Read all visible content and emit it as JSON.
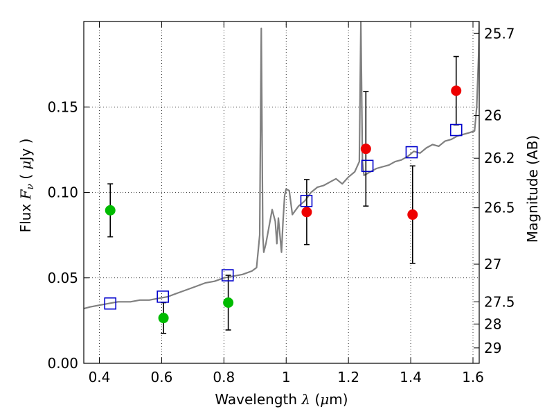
{
  "chart_data": {
    "type": "scatter",
    "xlabel_prefix": "Wavelength",
    "xlabel_math": "λ",
    "xlabel_unit_open": "(",
    "xlabel_unit_mu": "μ",
    "xlabel_unit_rest": "m)",
    "ylabel_prefix": "Flux",
    "ylabel_math": "F",
    "ylabel_sub": "ν",
    "ylabel_unit_open": "(",
    "ylabel_unit_mu": "μ",
    "ylabel_unit_rest": "Jy )",
    "y2label": "Magnitude (AB)",
    "xlim": [
      0.35,
      1.62
    ],
    "ylim": [
      0.0,
      0.2
    ],
    "grid": true,
    "x_ticks": [
      {
        "value": 0.4,
        "label": "0.4"
      },
      {
        "value": 0.6,
        "label": "0.6"
      },
      {
        "value": 0.8,
        "label": "0.8"
      },
      {
        "value": 1.0,
        "label": "1"
      },
      {
        "value": 1.2,
        "label": "1.2"
      },
      {
        "value": 1.4,
        "label": "1.4"
      },
      {
        "value": 1.6,
        "label": "1.6"
      }
    ],
    "y_ticks": [
      {
        "value": 0.0,
        "label": "0.00"
      },
      {
        "value": 0.05,
        "label": "0.05"
      },
      {
        "value": 0.1,
        "label": "0.10"
      },
      {
        "value": 0.15,
        "label": "0.15"
      }
    ],
    "mag_ticks": [
      {
        "flux": 0.193,
        "label": "25.7"
      },
      {
        "flux": 0.145,
        "label": "26"
      },
      {
        "flux": 0.12,
        "label": "26.2"
      },
      {
        "flux": 0.091,
        "label": "26.5"
      },
      {
        "flux": 0.058,
        "label": "27"
      },
      {
        "flux": 0.036,
        "label": "27.5"
      },
      {
        "flux": 0.023,
        "label": "28"
      },
      {
        "flux": 0.009,
        "label": "29"
      }
    ],
    "series": [
      {
        "name": "green photometry",
        "marker": "circle",
        "color": "#00bb00",
        "points": [
          {
            "x": 0.435,
            "y": 0.0895,
            "err": 0.0155
          },
          {
            "x": 0.606,
            "y": 0.0265,
            "err": 0.009
          },
          {
            "x": 0.814,
            "y": 0.0355,
            "err": 0.016
          }
        ]
      },
      {
        "name": "red photometry",
        "marker": "circle",
        "color": "#ee0000",
        "points": [
          {
            "x": 1.066,
            "y": 0.0885,
            "err": 0.019
          },
          {
            "x": 1.256,
            "y": 0.1255,
            "err": 0.0335
          },
          {
            "x": 1.406,
            "y": 0.087,
            "err": 0.0285
          },
          {
            "x": 1.546,
            "y": 0.1595,
            "err": 0.02
          }
        ]
      },
      {
        "name": "model synthetic photometry",
        "marker": "open-square",
        "color": "#0000cc",
        "points": [
          {
            "x": 0.435,
            "y": 0.035
          },
          {
            "x": 0.604,
            "y": 0.039
          },
          {
            "x": 0.812,
            "y": 0.0515
          },
          {
            "x": 1.065,
            "y": 0.095
          },
          {
            "x": 1.261,
            "y": 0.1155
          },
          {
            "x": 1.403,
            "y": 0.1235
          },
          {
            "x": 1.546,
            "y": 0.1365
          }
        ]
      }
    ],
    "spectrum": {
      "name": "template SED",
      "color": "#808080",
      "x": [
        0.35,
        0.37,
        0.4,
        0.43,
        0.46,
        0.5,
        0.53,
        0.56,
        0.59,
        0.62,
        0.65,
        0.68,
        0.71,
        0.74,
        0.77,
        0.8,
        0.83,
        0.86,
        0.89,
        0.905,
        0.915,
        0.92,
        0.925,
        0.928,
        0.935,
        0.945,
        0.955,
        0.965,
        0.97,
        0.975,
        0.985,
        0.99,
        0.995,
        1.0,
        1.01,
        1.02,
        1.04,
        1.06,
        1.08,
        1.1,
        1.12,
        1.14,
        1.16,
        1.18,
        1.2,
        1.22,
        1.235,
        1.24,
        1.245,
        1.25,
        1.27,
        1.29,
        1.31,
        1.33,
        1.35,
        1.37,
        1.39,
        1.41,
        1.43,
        1.45,
        1.47,
        1.49,
        1.51,
        1.53,
        1.55,
        1.57,
        1.59,
        1.605,
        1.612,
        1.618,
        1.62
      ],
      "y": [
        0.032,
        0.033,
        0.034,
        0.035,
        0.036,
        0.036,
        0.037,
        0.037,
        0.038,
        0.039,
        0.041,
        0.043,
        0.045,
        0.047,
        0.048,
        0.05,
        0.051,
        0.052,
        0.054,
        0.056,
        0.075,
        0.196,
        0.075,
        0.065,
        0.07,
        0.08,
        0.09,
        0.083,
        0.07,
        0.085,
        0.065,
        0.083,
        0.098,
        0.102,
        0.101,
        0.087,
        0.092,
        0.095,
        0.1,
        0.103,
        0.104,
        0.106,
        0.108,
        0.105,
        0.109,
        0.112,
        0.118,
        0.2,
        0.118,
        0.11,
        0.112,
        0.114,
        0.115,
        0.116,
        0.118,
        0.119,
        0.121,
        0.124,
        0.123,
        0.126,
        0.128,
        0.127,
        0.13,
        0.131,
        0.133,
        0.134,
        0.135,
        0.136,
        0.15,
        0.18,
        0.2
      ]
    }
  }
}
